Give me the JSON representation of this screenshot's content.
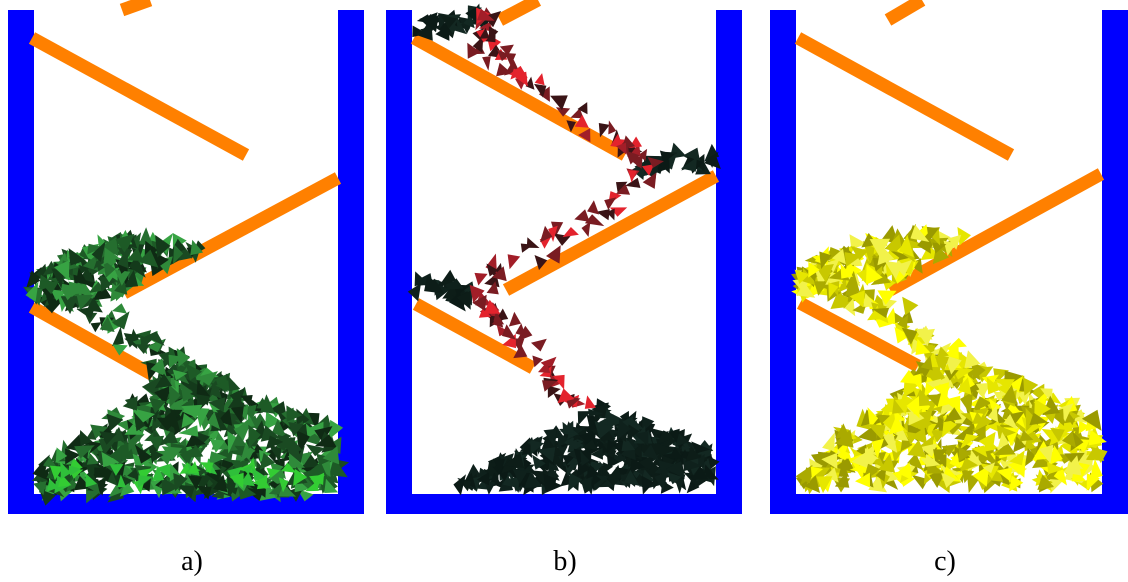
{
  "panels": [
    {
      "id": "a",
      "caption": "a)",
      "grain_palette": [
        "#0f2a14",
        "#143a1b",
        "#1d5a26",
        "#256e2f",
        "#2f8a3a",
        "#37a343",
        "#1a4a22"
      ],
      "grain_emphasis": "#33cc33"
    },
    {
      "id": "b",
      "caption": "b)",
      "grain_palette": [
        "#0b1a16",
        "#0f211c",
        "#132822",
        "#0d1d18"
      ],
      "falling_palette": [
        "#e3232d",
        "#7a1c22",
        "#a21e28",
        "#3a1416"
      ]
    },
    {
      "id": "c",
      "caption": "c)",
      "grain_palette": [
        "#ffff00",
        "#e6e600",
        "#c8c800",
        "#aaaa00",
        "#9a9a00",
        "#f2f24a"
      ]
    }
  ],
  "colors": {
    "container": "#0000ff",
    "baffle": "#ff8000",
    "background": "#ffffff"
  }
}
